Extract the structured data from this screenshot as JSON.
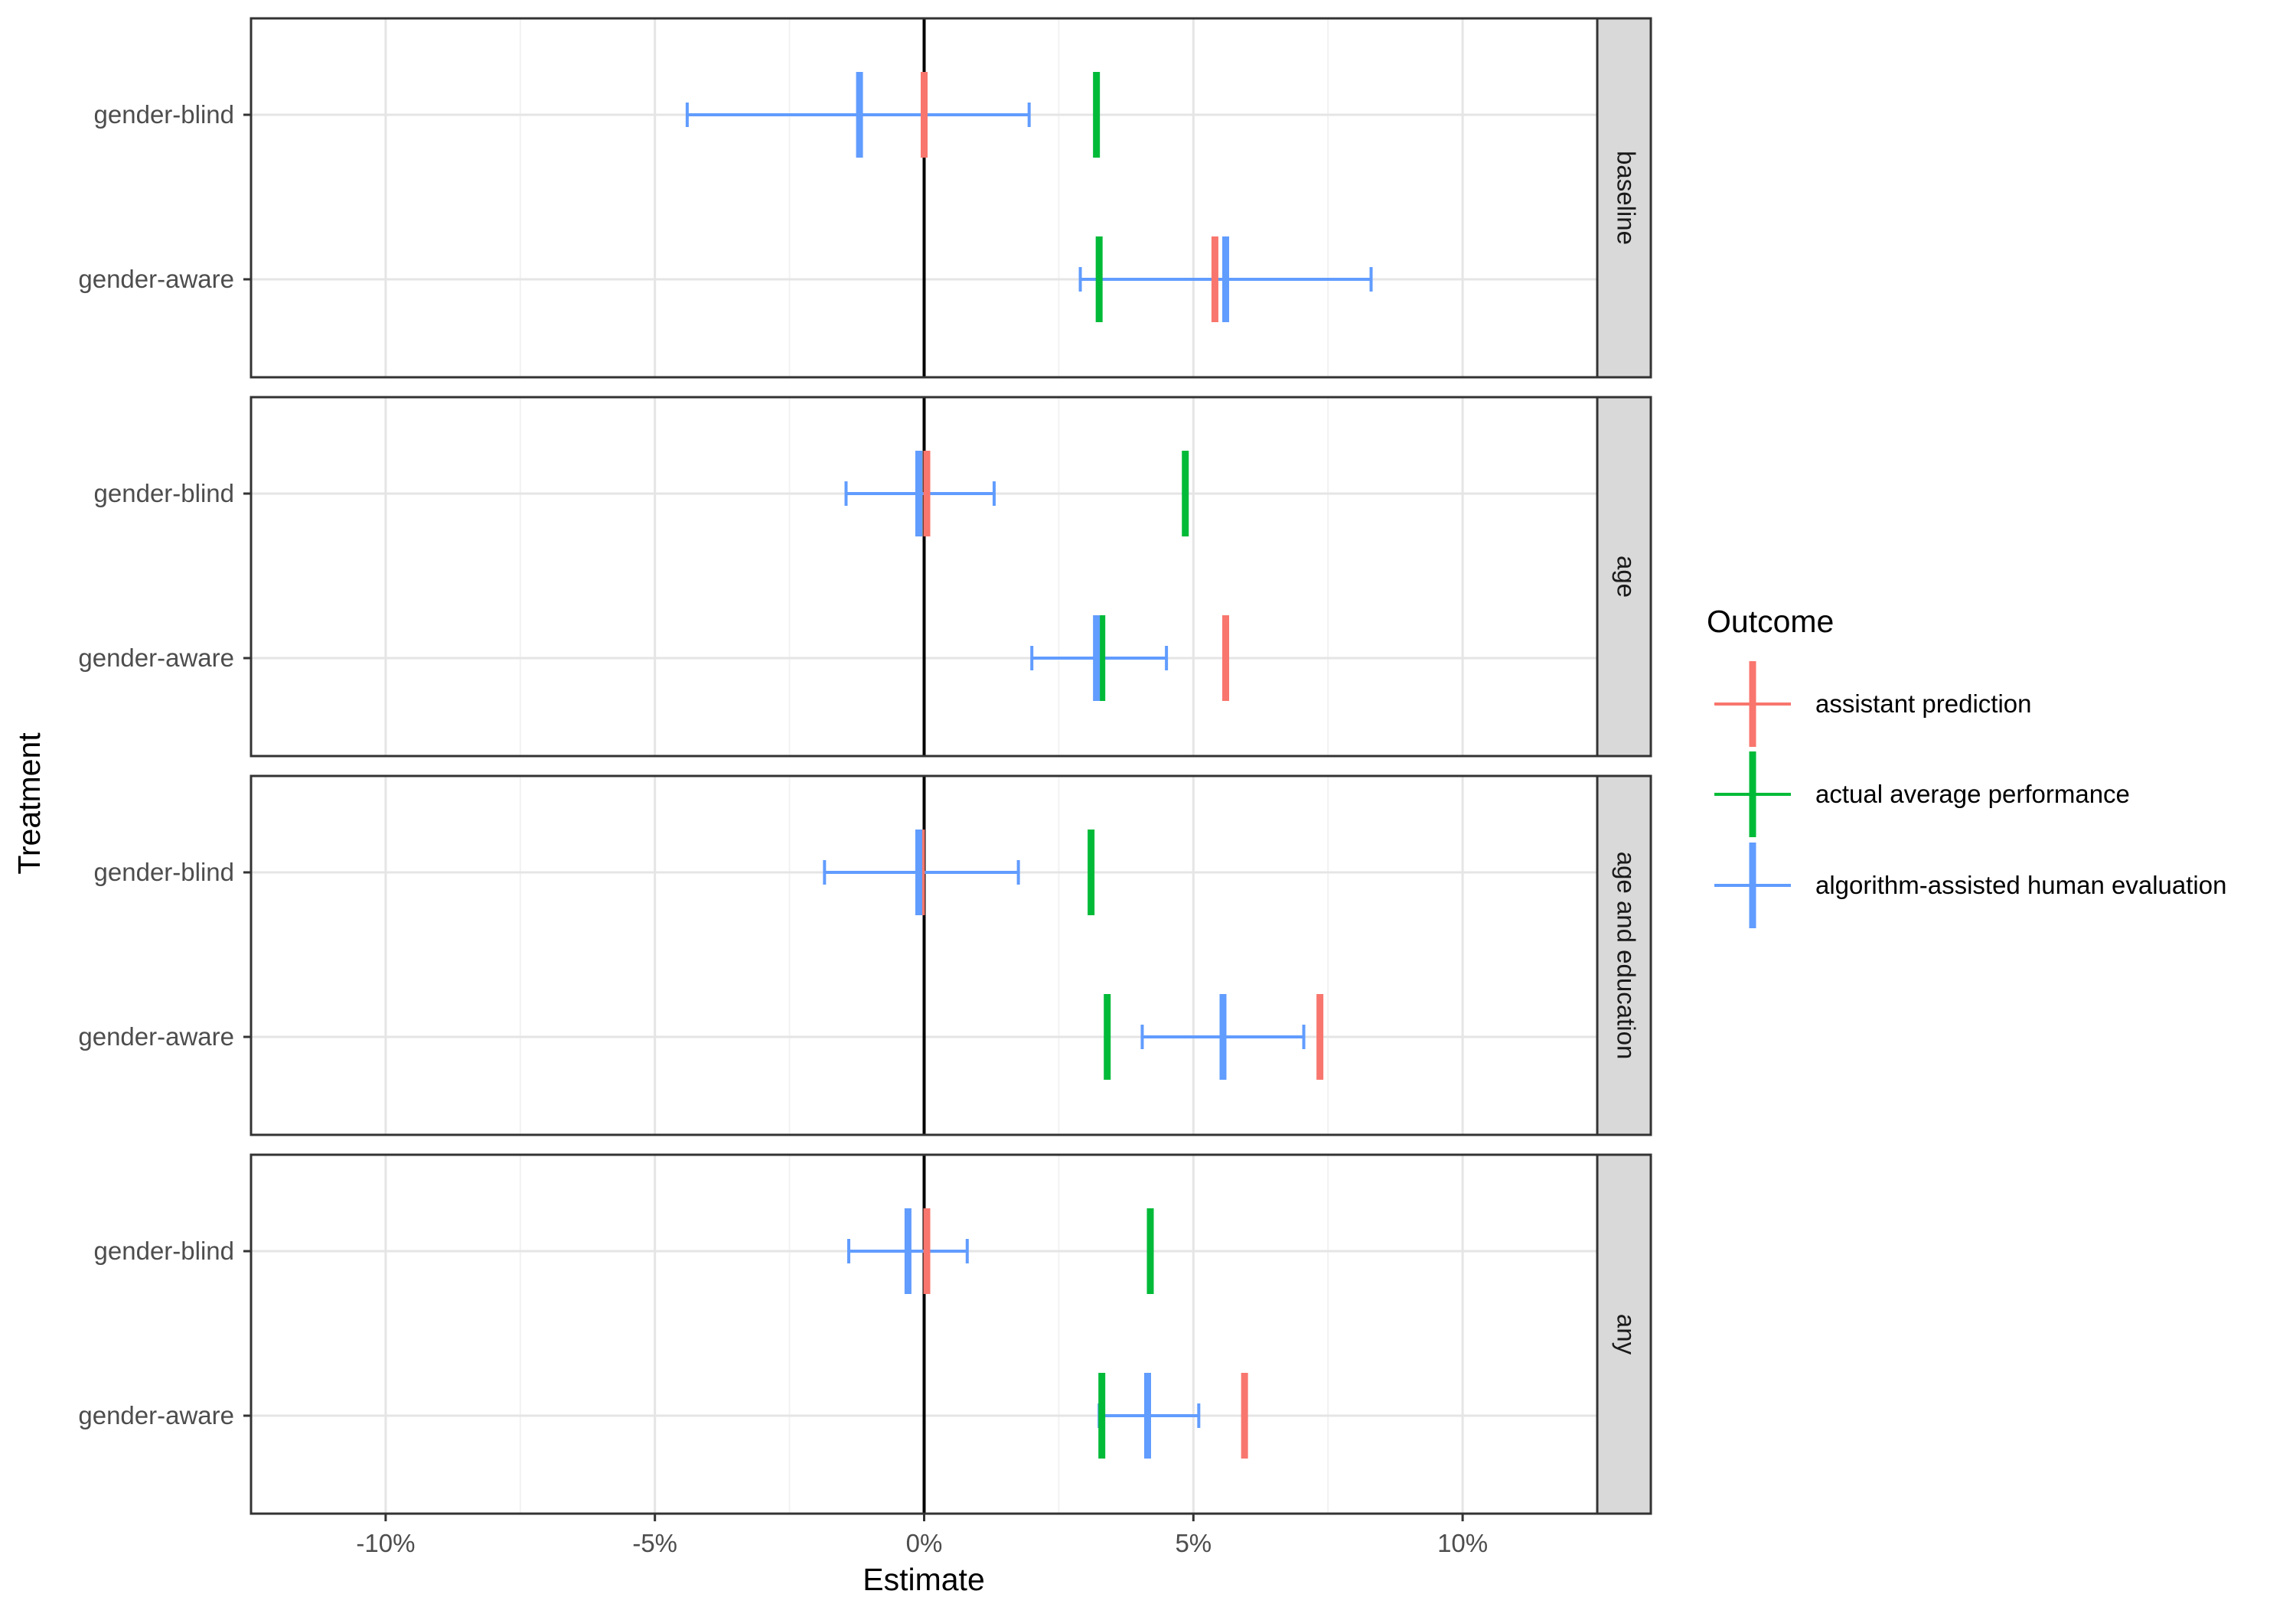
{
  "chart_data": {
    "type": "errorbar",
    "xlabel": "Estimate",
    "ylabel": "Treatment",
    "xlim": [
      -12.5,
      12.5
    ],
    "x_ticks": [
      -10,
      -5,
      0,
      5,
      10
    ],
    "x_tick_labels": [
      "-10%",
      "-5%",
      "0%",
      "5%",
      "10%"
    ],
    "y_categories": [
      "gender-blind",
      "gender-aware"
    ],
    "legend": {
      "title": "Outcome",
      "position": "right",
      "items": [
        {
          "name": "assistant prediction",
          "color": "#F8766D"
        },
        {
          "name": "actual average performance",
          "color": "#00BA38"
        },
        {
          "name": "algorithm-assisted human evaluation",
          "color": "#619CFF"
        }
      ]
    },
    "panels": [
      {
        "label": "baseline",
        "rows": [
          {
            "treatment": "gender-blind",
            "assistant_prediction": 0.0,
            "actual_average_performance": 3.2,
            "human_evaluation": {
              "estimate": -1.2,
              "low": -4.4,
              "high": 1.95
            }
          },
          {
            "treatment": "gender-aware",
            "assistant_prediction": 5.4,
            "actual_average_performance": 3.25,
            "human_evaluation": {
              "estimate": 5.6,
              "low": 2.9,
              "high": 8.3
            }
          }
        ]
      },
      {
        "label": "age",
        "rows": [
          {
            "treatment": "gender-blind",
            "assistant_prediction": 0.05,
            "actual_average_performance": 4.85,
            "human_evaluation": {
              "estimate": -0.1,
              "low": -1.45,
              "high": 1.3
            }
          },
          {
            "treatment": "gender-aware",
            "assistant_prediction": 5.6,
            "actual_average_performance": 3.3,
            "human_evaluation": {
              "estimate": 3.2,
              "low": 2.0,
              "high": 4.5
            }
          }
        ]
      },
      {
        "label": "age and education",
        "rows": [
          {
            "treatment": "gender-blind",
            "assistant_prediction": -0.05,
            "actual_average_performance": 3.1,
            "human_evaluation": {
              "estimate": -0.1,
              "low": -1.85,
              "high": 1.75
            }
          },
          {
            "treatment": "gender-aware",
            "assistant_prediction": 7.35,
            "actual_average_performance": 3.4,
            "human_evaluation": {
              "estimate": 5.55,
              "low": 4.05,
              "high": 7.05
            }
          }
        ]
      },
      {
        "label": "any",
        "rows": [
          {
            "treatment": "gender-blind",
            "assistant_prediction": 0.05,
            "actual_average_performance": 4.2,
            "human_evaluation": {
              "estimate": -0.3,
              "low": -1.4,
              "high": 0.8
            }
          },
          {
            "treatment": "gender-aware",
            "assistant_prediction": 5.95,
            "actual_average_performance": 3.3,
            "human_evaluation": {
              "estimate": 4.15,
              "low": 3.25,
              "high": 5.1
            }
          }
        ]
      }
    ]
  }
}
